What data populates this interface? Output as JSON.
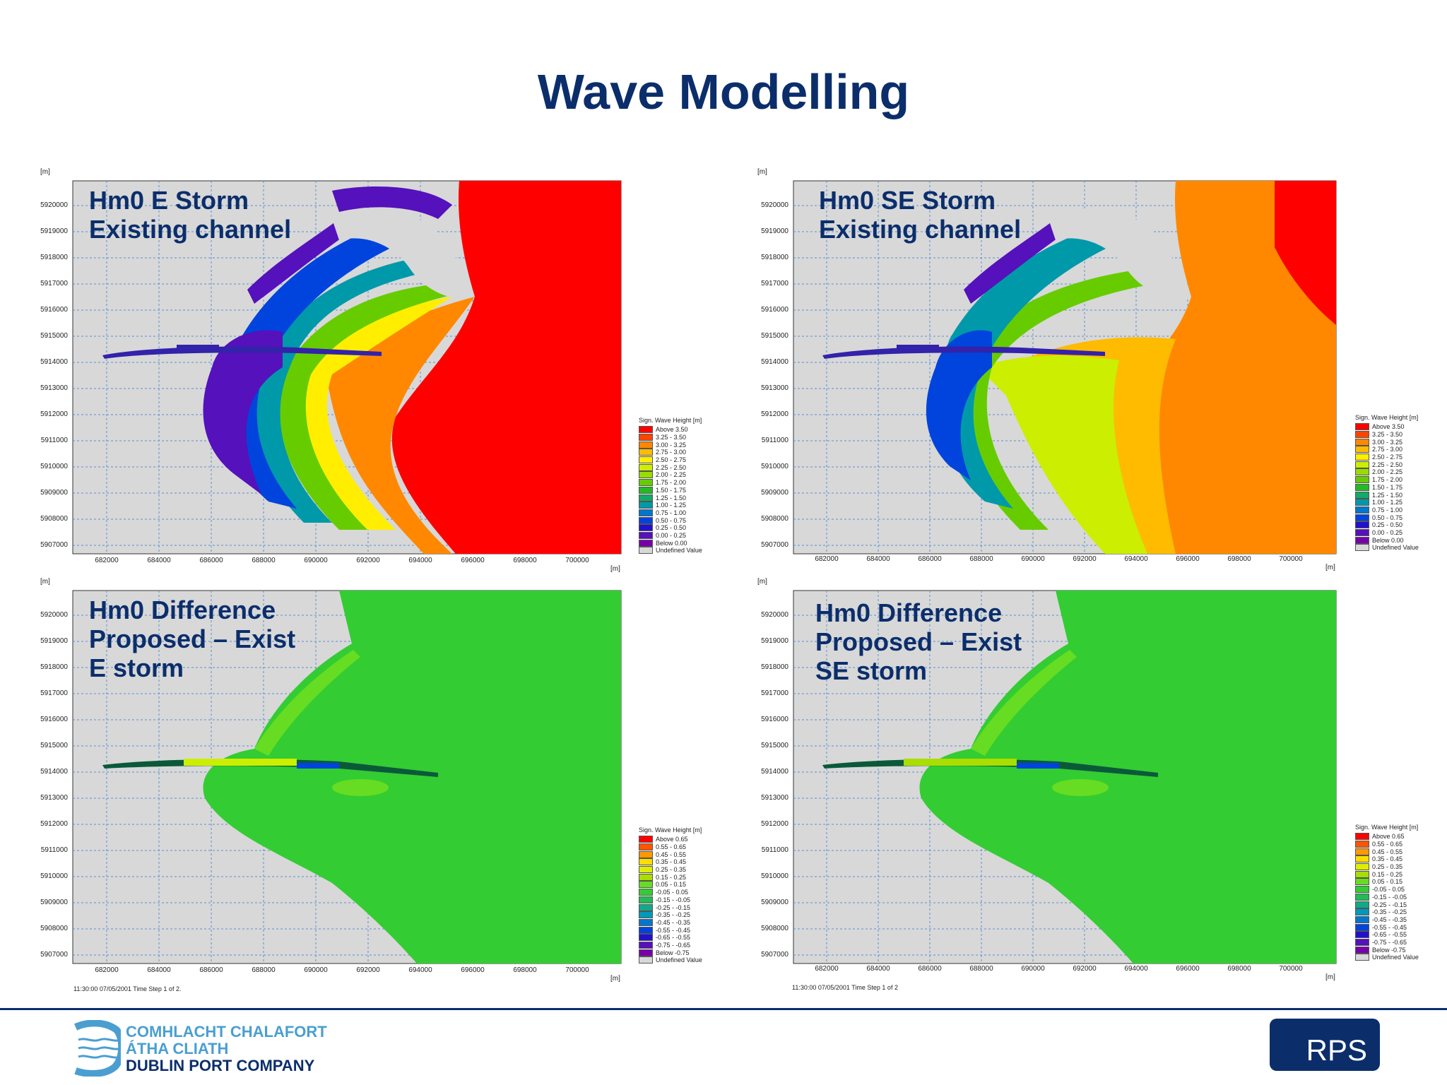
{
  "title": "Wave Modelling",
  "axis_unit": "[m]",
  "y_ticks": [
    "5920000",
    "5919000",
    "5918000",
    "5917000",
    "5916000",
    "5915000",
    "5914000",
    "5913000",
    "5912000",
    "5911000",
    "5910000",
    "5909000",
    "5908000",
    "5907000"
  ],
  "x_ticks": [
    "682000",
    "684000",
    "686000",
    "688000",
    "690000",
    "692000",
    "694000",
    "696000",
    "698000",
    "700000"
  ],
  "panels": [
    {
      "id": "e-existing",
      "label": "Hm0 E Storm\nExisting channel",
      "legend_key": "height",
      "footnote": ""
    },
    {
      "id": "se-existing",
      "label": "Hm0 SE Storm\nExisting channel",
      "legend_key": "height",
      "footnote": ""
    },
    {
      "id": "e-diff",
      "label": "Hm0 Difference\nProposed – Exist\nE storm",
      "legend_key": "diff",
      "footnote": "11:30:00 07/05/2001  Time Step 1 of 2."
    },
    {
      "id": "se-diff",
      "label": "Hm0 Difference\nProposed – Exist\nSE storm",
      "legend_key": "diff",
      "footnote": "11:30:00 07/05/2001  Time Step 1 of 2"
    }
  ],
  "legends": {
    "height": {
      "title": "Sign. Wave Height [m]",
      "items": [
        {
          "label": "Above 3.50",
          "color": "#ff0000"
        },
        {
          "label": "3.25 - 3.50",
          "color": "#ff4400"
        },
        {
          "label": "3.00 - 3.25",
          "color": "#ff8800"
        },
        {
          "label": "2.75 - 3.00",
          "color": "#ffbb00"
        },
        {
          "label": "2.50 - 2.75",
          "color": "#ffee00"
        },
        {
          "label": "2.25 - 2.50",
          "color": "#ccee00"
        },
        {
          "label": "2.00 - 2.25",
          "color": "#99dd00"
        },
        {
          "label": "1.75 - 2.00",
          "color": "#66cc00"
        },
        {
          "label": "1.50 - 1.75",
          "color": "#22bb22"
        },
        {
          "label": "1.25 - 1.50",
          "color": "#11aa66"
        },
        {
          "label": "1.00 - 1.25",
          "color": "#0099aa"
        },
        {
          "label": "0.75 - 1.00",
          "color": "#0077cc"
        },
        {
          "label": "0.50 - 0.75",
          "color": "#0044dd"
        },
        {
          "label": "0.25 - 0.50",
          "color": "#2211cc"
        },
        {
          "label": "0.00 - 0.25",
          "color": "#5511bb"
        },
        {
          "label": "Below 0.00",
          "color": "#7700aa"
        },
        {
          "label": "Undefined Value",
          "color": "#d8d8d8"
        }
      ]
    },
    "diff": {
      "title": "Sign. Wave Height [m]",
      "items": [
        {
          "label": "Above  0.65",
          "color": "#ff0000"
        },
        {
          "label": "0.55 -  0.65",
          "color": "#ff5500"
        },
        {
          "label": "0.45 -  0.55",
          "color": "#ff9900"
        },
        {
          "label": "0.35 -  0.45",
          "color": "#ffdd00"
        },
        {
          "label": "0.25 -  0.35",
          "color": "#ddee00"
        },
        {
          "label": "0.15 -  0.25",
          "color": "#aadd00"
        },
        {
          "label": "0.05 -  0.15",
          "color": "#66dd22"
        },
        {
          "label": "-0.05 -  0.05",
          "color": "#33cc33"
        },
        {
          "label": "-0.15 - -0.05",
          "color": "#22bb55"
        },
        {
          "label": "-0.25 - -0.15",
          "color": "#11aa88"
        },
        {
          "label": "-0.35 - -0.25",
          "color": "#0099bb"
        },
        {
          "label": "-0.45 - -0.35",
          "color": "#0077cc"
        },
        {
          "label": "-0.55 - -0.45",
          "color": "#0044dd"
        },
        {
          "label": "-0.65 - -0.55",
          "color": "#2211cc"
        },
        {
          "label": "-0.75 - -0.65",
          "color": "#5511bb"
        },
        {
          "label": "Below -0.75",
          "color": "#7700aa"
        },
        {
          "label": "Undefined Value",
          "color": "#d8d8d8"
        }
      ]
    }
  },
  "logo": {
    "line1": "COMHLACHT CHALAFORT",
    "line2": "ÁTHA CLIATH",
    "line3": "DUBLIN PORT COMPANY"
  },
  "rps_logo": "RPS"
}
